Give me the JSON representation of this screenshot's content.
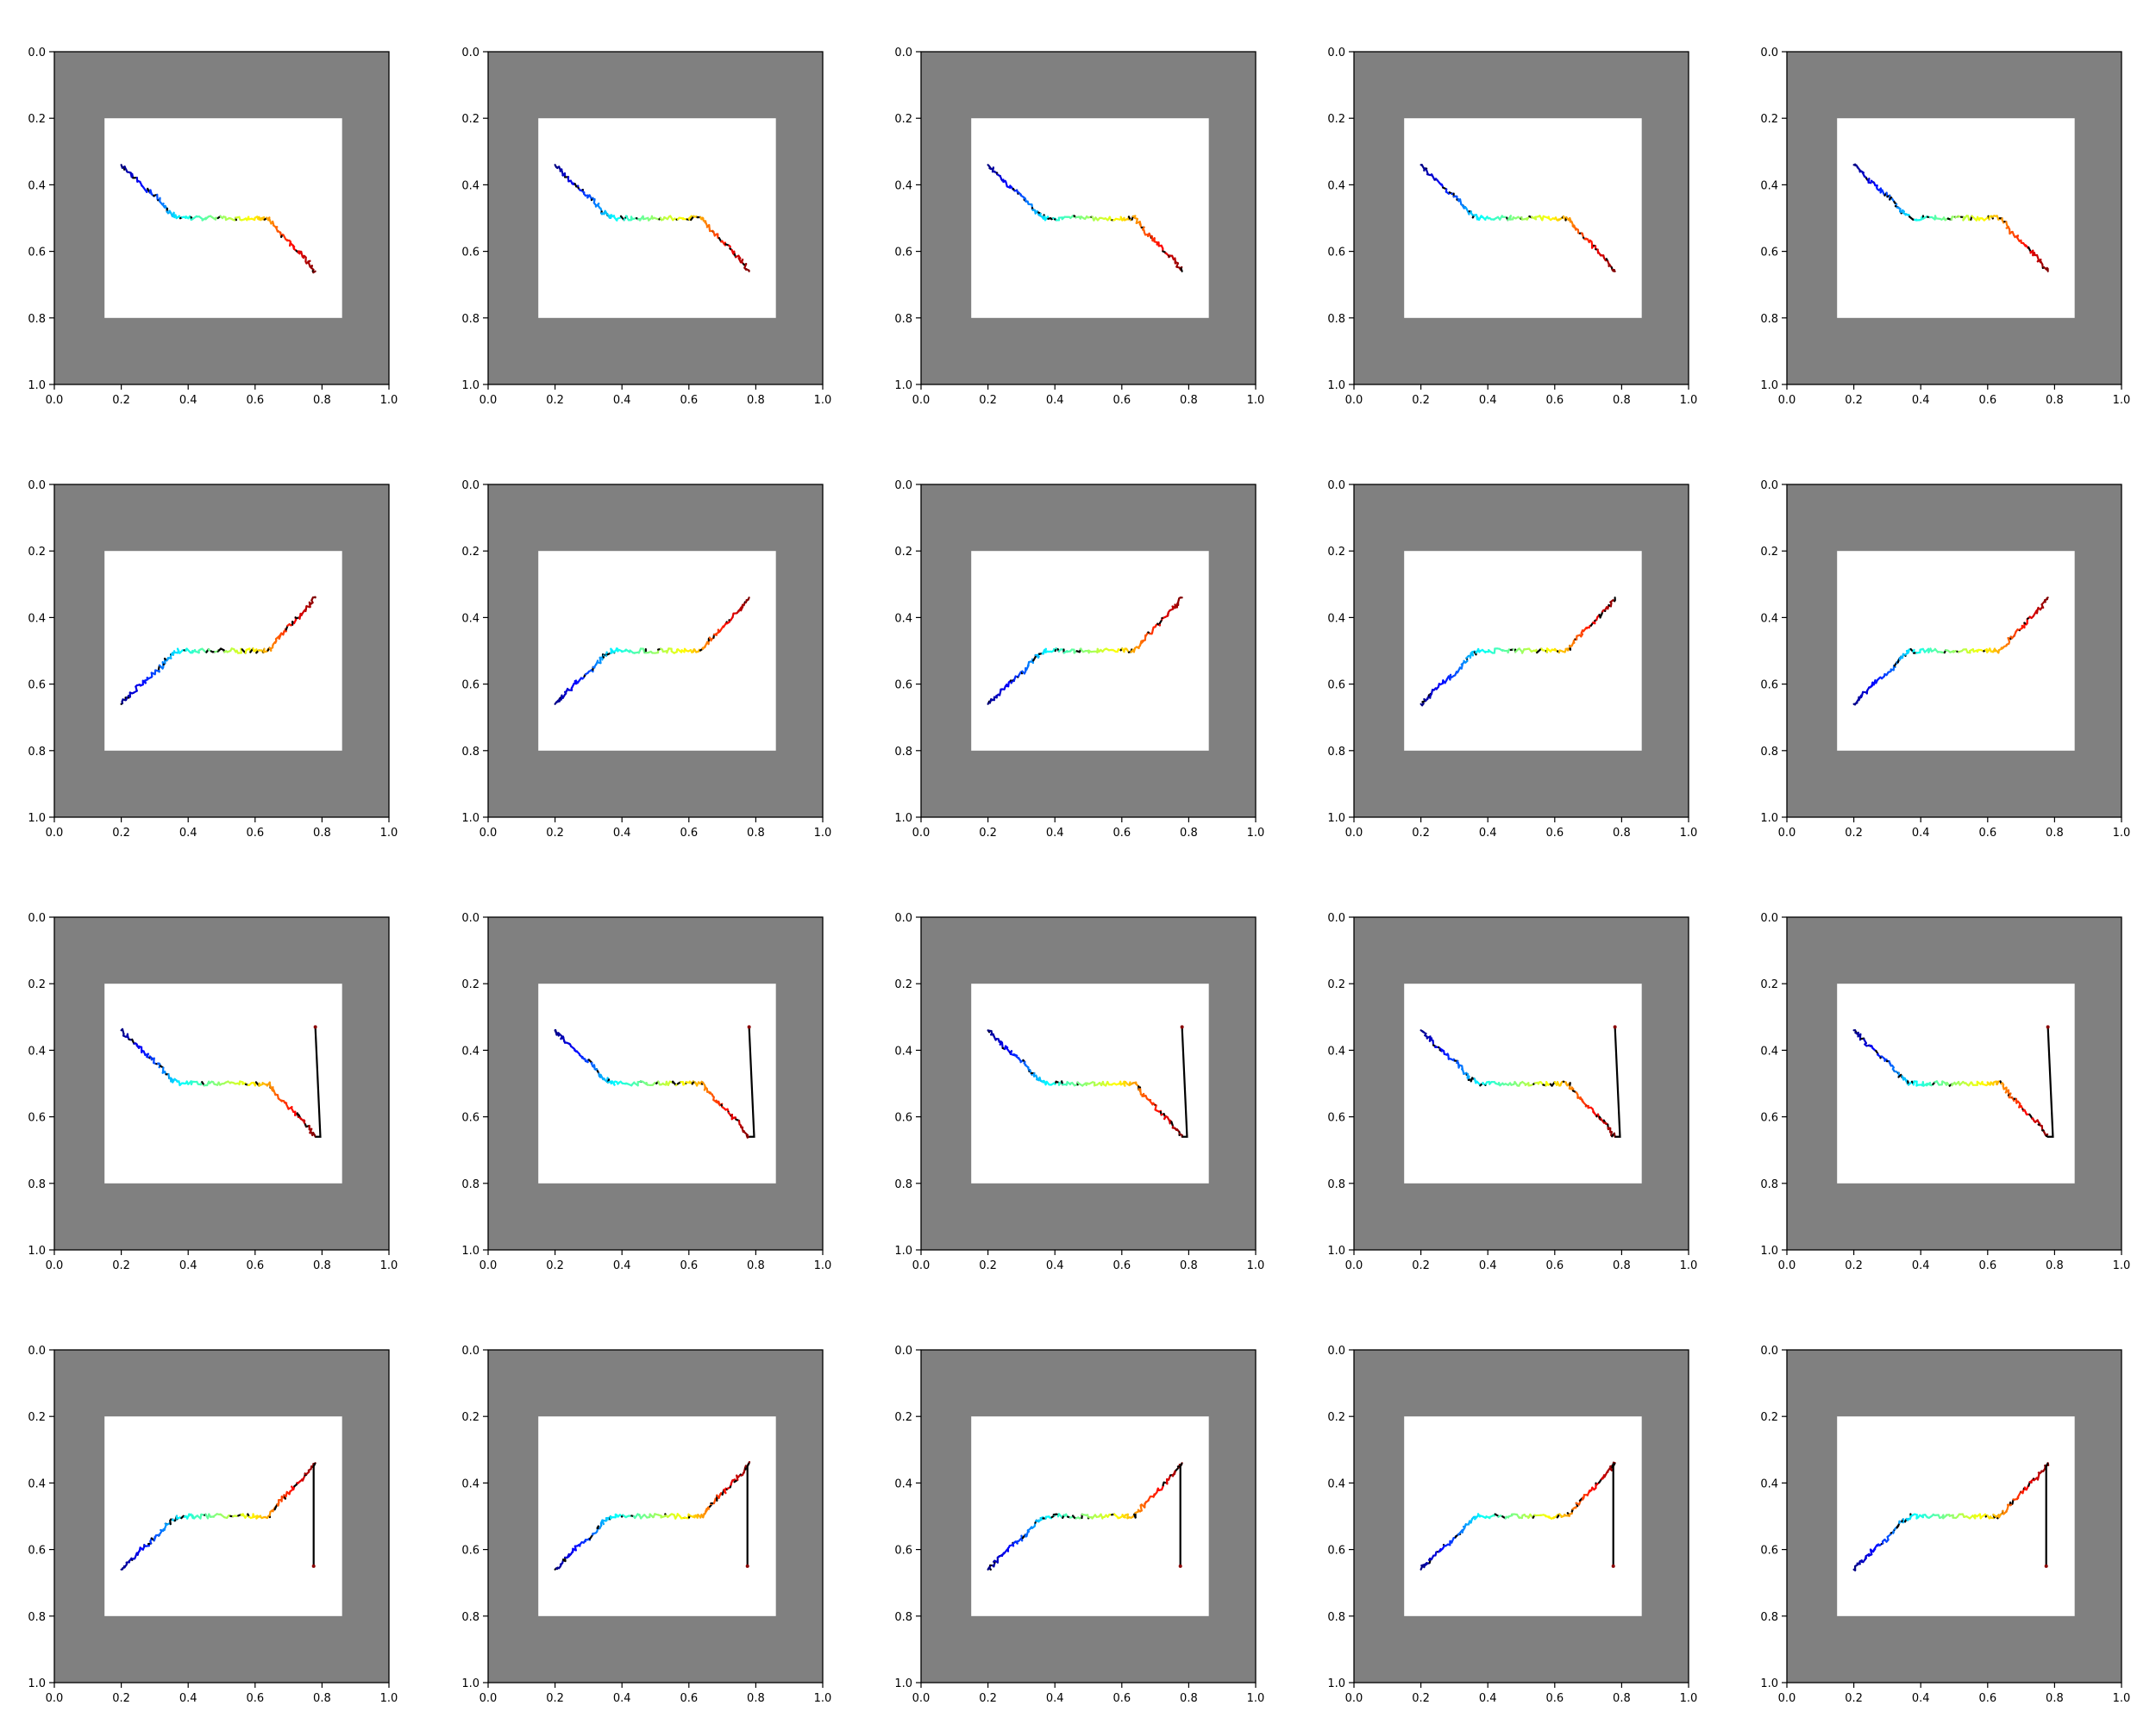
{
  "figure": {
    "background": "#ffffff",
    "panel_background": "#808080",
    "inner_region_color": "#ffffff",
    "spine_color": "#000000",
    "colormap": "jet"
  },
  "chart_data": {
    "type": "line",
    "layout": "grid 4 rows x 5 columns",
    "axes": {
      "xlim": [
        0.0,
        1.0
      ],
      "ylim": [
        0.0,
        1.0
      ],
      "y_inverted": true,
      "xticks": [
        "0.0",
        "0.2",
        "0.4",
        "0.6",
        "0.8",
        "1.0"
      ],
      "yticks": [
        "0.0",
        "0.2",
        "0.4",
        "0.6",
        "0.8",
        "1.0"
      ],
      "grid": false,
      "inner_white_region": {
        "x": [
          0.15,
          0.86
        ],
        "y": [
          0.2,
          0.8
        ]
      }
    },
    "row_templates": [
      {
        "name": "descending",
        "points": [
          [
            0.2,
            0.34
          ],
          [
            0.23,
            0.37
          ],
          [
            0.27,
            0.41
          ],
          [
            0.31,
            0.44
          ],
          [
            0.34,
            0.48
          ],
          [
            0.37,
            0.5
          ],
          [
            0.42,
            0.5
          ],
          [
            0.48,
            0.5
          ],
          [
            0.54,
            0.5
          ],
          [
            0.6,
            0.5
          ],
          [
            0.64,
            0.5
          ],
          [
            0.67,
            0.54
          ],
          [
            0.71,
            0.58
          ],
          [
            0.75,
            0.62
          ],
          [
            0.78,
            0.66
          ]
        ],
        "closing_segment": null
      },
      {
        "name": "ascending",
        "points": [
          [
            0.2,
            0.66
          ],
          [
            0.23,
            0.63
          ],
          [
            0.27,
            0.59
          ],
          [
            0.31,
            0.56
          ],
          [
            0.34,
            0.52
          ],
          [
            0.37,
            0.5
          ],
          [
            0.42,
            0.5
          ],
          [
            0.48,
            0.5
          ],
          [
            0.54,
            0.5
          ],
          [
            0.6,
            0.5
          ],
          [
            0.64,
            0.5
          ],
          [
            0.67,
            0.46
          ],
          [
            0.71,
            0.42
          ],
          [
            0.75,
            0.38
          ],
          [
            0.78,
            0.34
          ]
        ],
        "closing_segment": null
      },
      {
        "name": "descending-with-jump",
        "points": [
          [
            0.2,
            0.34
          ],
          [
            0.23,
            0.37
          ],
          [
            0.27,
            0.41
          ],
          [
            0.31,
            0.44
          ],
          [
            0.34,
            0.48
          ],
          [
            0.37,
            0.5
          ],
          [
            0.42,
            0.5
          ],
          [
            0.48,
            0.5
          ],
          [
            0.54,
            0.5
          ],
          [
            0.6,
            0.5
          ],
          [
            0.64,
            0.5
          ],
          [
            0.67,
            0.54
          ],
          [
            0.71,
            0.58
          ],
          [
            0.75,
            0.62
          ],
          [
            0.78,
            0.66
          ]
        ],
        "closing_segment": [
          [
            0.78,
            0.66
          ],
          [
            0.795,
            0.66
          ],
          [
            0.78,
            0.33
          ]
        ]
      },
      {
        "name": "ascending-with-jump",
        "points": [
          [
            0.2,
            0.66
          ],
          [
            0.23,
            0.63
          ],
          [
            0.27,
            0.59
          ],
          [
            0.31,
            0.56
          ],
          [
            0.34,
            0.52
          ],
          [
            0.37,
            0.5
          ],
          [
            0.42,
            0.5
          ],
          [
            0.48,
            0.5
          ],
          [
            0.54,
            0.5
          ],
          [
            0.6,
            0.5
          ],
          [
            0.64,
            0.5
          ],
          [
            0.67,
            0.46
          ],
          [
            0.71,
            0.42
          ],
          [
            0.75,
            0.38
          ],
          [
            0.78,
            0.34
          ]
        ],
        "closing_segment": [
          [
            0.78,
            0.34
          ],
          [
            0.775,
            0.35
          ],
          [
            0.775,
            0.65
          ]
        ]
      }
    ]
  }
}
